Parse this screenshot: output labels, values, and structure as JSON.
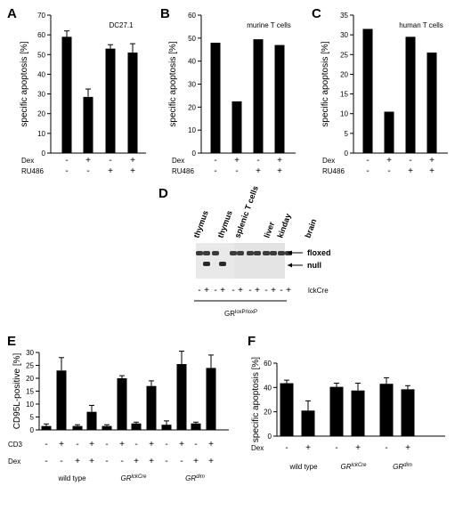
{
  "chart_data": [
    {
      "panel": "A",
      "type": "bar",
      "annotation": "DC27.1",
      "ylabel": "specific apoptosis [%]",
      "ylim": [
        0,
        70
      ],
      "yticks": [
        0,
        10,
        20,
        30,
        40,
        50,
        60,
        70
      ],
      "ytick_labels": [
        "0",
        "10",
        "20",
        "30",
        "40",
        "50",
        "60",
        "70"
      ],
      "values": [
        59,
        28.5,
        53,
        51
      ],
      "errors": [
        3,
        4,
        2,
        4.5
      ],
      "rows": [
        {
          "label": "Dex",
          "signs": [
            "-",
            "+",
            "-",
            "+"
          ]
        },
        {
          "label": "RU486",
          "signs": [
            "-",
            "-",
            "+",
            "+"
          ]
        }
      ]
    },
    {
      "panel": "B",
      "type": "bar",
      "annotation": "murine T cells",
      "ylabel": "specific apoptosis [%]",
      "ylim": [
        0,
        60
      ],
      "yticks": [
        0,
        10,
        20,
        30,
        40,
        50,
        60
      ],
      "ytick_labels": [
        "0",
        "10",
        "20",
        "30",
        "40",
        "50",
        "60"
      ],
      "values": [
        48,
        22.5,
        49.5,
        47
      ],
      "rows": [
        {
          "label": "Dex",
          "signs": [
            "-",
            "+",
            "-",
            "+"
          ]
        },
        {
          "label": "RU486",
          "signs": [
            "-",
            "-",
            "+",
            "+"
          ]
        }
      ]
    },
    {
      "panel": "C",
      "type": "bar",
      "annotation": "human T cells",
      "ylabel": "specific apoptosis [%]",
      "ylim": [
        0,
        35
      ],
      "yticks": [
        0,
        5,
        10,
        15,
        20,
        25,
        30,
        35
      ],
      "ytick_labels": [
        "0",
        "5",
        "10",
        "15",
        "20",
        "25",
        "30",
        "35"
      ],
      "values": [
        31.5,
        10.5,
        29.5,
        25.5
      ],
      "rows": [
        {
          "label": "Dex",
          "signs": [
            "-",
            "+",
            "-",
            "+"
          ]
        },
        {
          "label": "RU486",
          "signs": [
            "-",
            "-",
            "+",
            "+"
          ]
        }
      ]
    },
    {
      "panel": "E",
      "type": "bar",
      "ylabel": "CD95L-positive [%]",
      "ylim": [
        0,
        30
      ],
      "yticks": [
        0,
        5,
        10,
        15,
        20,
        25,
        30
      ],
      "ytick_labels": [
        "0",
        "5",
        "10",
        "15",
        "20",
        "25",
        "30"
      ],
      "values": [
        1.5,
        23,
        1.5,
        7,
        1.5,
        20,
        2.5,
        17,
        2,
        25.5,
        2.5,
        24
      ],
      "errors": [
        0.8,
        5,
        0.5,
        2.5,
        0.5,
        1,
        0.5,
        2,
        1.5,
        5,
        0.5,
        5
      ],
      "rows": [
        {
          "label": "CD3",
          "signs": [
            "-",
            "+",
            "-",
            "+",
            "-",
            "+",
            "-",
            "+",
            "-",
            "+",
            "-",
            "+"
          ]
        },
        {
          "label": "Dex",
          "signs": [
            "-",
            "-",
            "+",
            "+",
            "-",
            "-",
            "+",
            "+",
            "-",
            "-",
            "+",
            "+"
          ]
        }
      ],
      "groups": [
        {
          "base": "wild type",
          "sup": ""
        },
        {
          "base": "GR",
          "sup": "lckCre"
        },
        {
          "base": "GR",
          "sup": "dim"
        }
      ]
    },
    {
      "panel": "F",
      "type": "bar",
      "ylabel": "specific apoptosis [%]",
      "ylim": [
        0,
        60
      ],
      "yticks": [
        0,
        20,
        40,
        60
      ],
      "ytick_labels": [
        "0",
        "20",
        "40",
        "60"
      ],
      "values": [
        43.5,
        21,
        40.5,
        37.5,
        43,
        38.5
      ],
      "errors": [
        2.5,
        8,
        3,
        6,
        5,
        3
      ],
      "rows": [
        {
          "label": "Dex",
          "signs": [
            "-",
            "+",
            "-",
            "+",
            "-",
            "+"
          ]
        }
      ],
      "groups": [
        {
          "base": "wild type",
          "sup": ""
        },
        {
          "base": "GR",
          "sup": "lckCre"
        },
        {
          "base": "GR",
          "sup": "dim"
        }
      ]
    }
  ],
  "gel": {
    "panel": "D",
    "lanes": [
      "thymus",
      "thymus",
      "splenic T cells",
      "liver",
      "kinday",
      "brain"
    ],
    "band_floxed": "floxed",
    "band_null": "null",
    "lckcre_label": "lckCre",
    "lckcre_signs": [
      "-",
      "+",
      "-",
      "+",
      "-",
      "+",
      "-",
      "+",
      "-",
      "+",
      "-",
      "+"
    ],
    "genotype": {
      "base": "GR",
      "sup": "loxP/loxP"
    }
  }
}
